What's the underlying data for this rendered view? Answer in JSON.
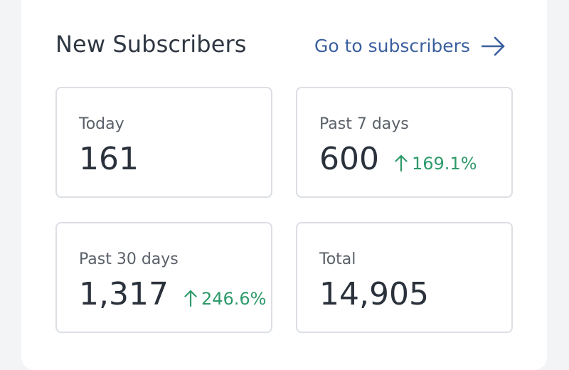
{
  "header": {
    "title": "New Subscribers",
    "link_label": "Go to subscribers"
  },
  "icons": {
    "link_icon": "arrow-right-icon",
    "trend_icon": "arrow-up-icon"
  },
  "colors": {
    "link": "#3a5f9e",
    "positive_change": "#2e9a6a"
  },
  "stats": [
    {
      "label": "Today",
      "value": "161"
    },
    {
      "label": "Past 7 days",
      "value": "600",
      "change": "169.1%"
    },
    {
      "label": "Past 30 days",
      "value": "1,317",
      "change": "246.6%"
    },
    {
      "label": "Total",
      "value": "14,905"
    }
  ]
}
